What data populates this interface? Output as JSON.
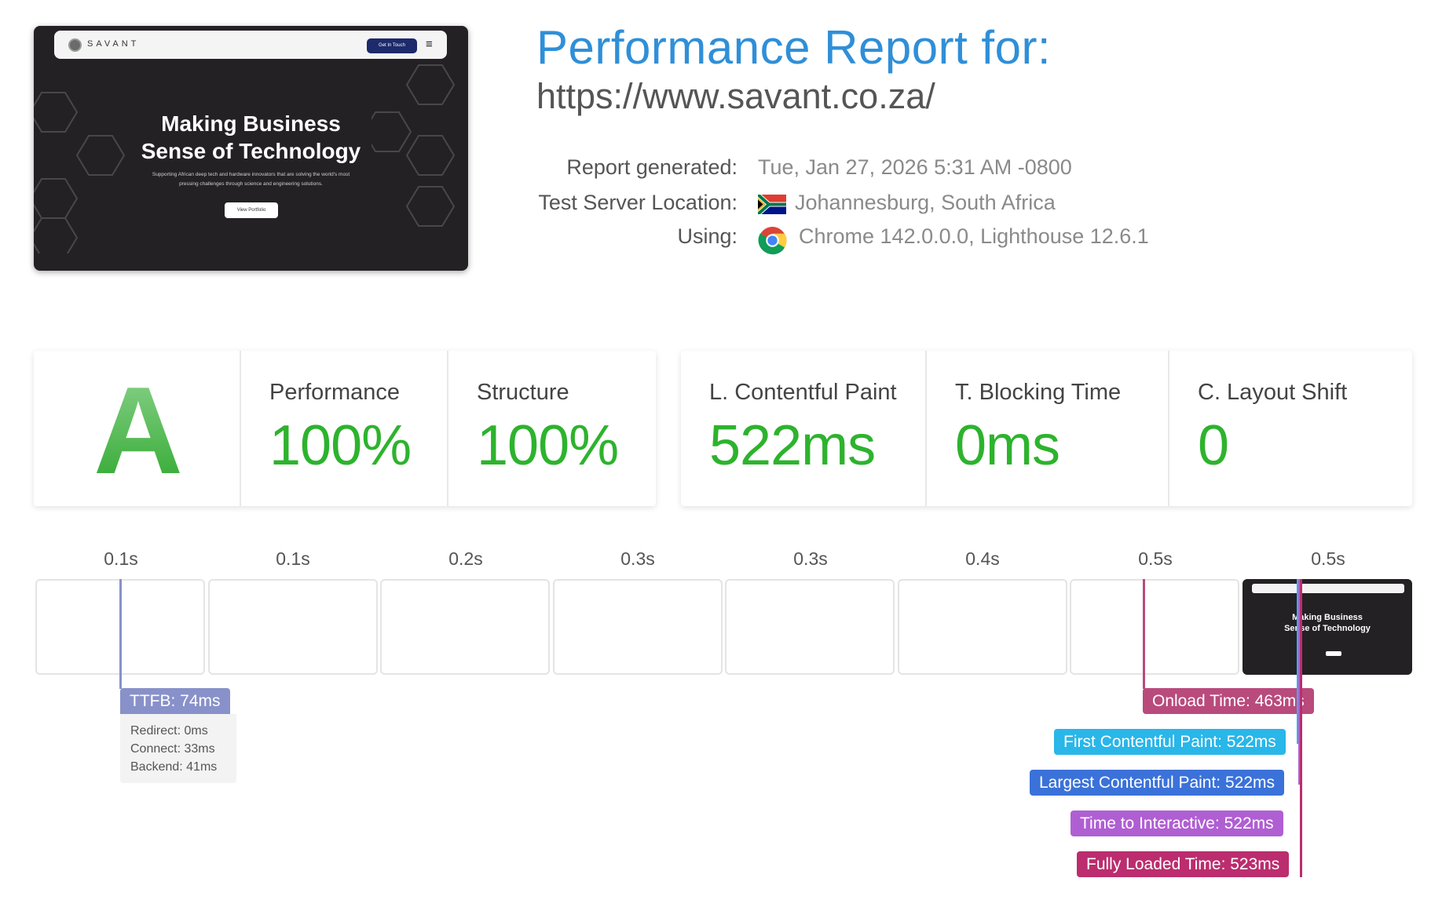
{
  "header": {
    "title": "Performance Report for:",
    "url": "https://www.savant.co.za/"
  },
  "meta": {
    "report_generated_label": "Report generated:",
    "report_generated_value": "Tue, Jan 27, 2026 5:31 AM -0800",
    "location_label": "Test Server Location:",
    "location_value": "Johannesburg, South Africa",
    "using_label": "Using:",
    "using_value": "Chrome 142.0.0.0, Lighthouse 12.6.1",
    "flag_icon": "south-africa-flag-icon",
    "browser_icon": "chrome-icon"
  },
  "thumbnail": {
    "brand": "SAVANT",
    "cta": "Get In Touch",
    "headline_line1": "Making Business",
    "headline_line2": "Sense of Technology",
    "subtitle": "Supporting African deep tech and hardware innovators that are solving the world's most pressing challenges through science and engineering solutions.",
    "button": "View Portfolio"
  },
  "scores": {
    "grade": "A",
    "performance_label": "Performance",
    "performance_value": "100%",
    "structure_label": "Structure",
    "structure_value": "100%",
    "lcp_label": "L. Contentful Paint",
    "lcp_value": "522ms",
    "tbt_label": "T. Blocking Time",
    "tbt_value": "0ms",
    "cls_label": "C. Layout Shift",
    "cls_value": "0",
    "good_color": "#2db32d"
  },
  "timeline": {
    "ticks": [
      "0.1s",
      "0.1s",
      "0.2s",
      "0.3s",
      "0.3s",
      "0.4s",
      "0.5s",
      "0.5s"
    ],
    "final_frame_line1": "Making Business",
    "final_frame_line2": "Sense of Technology",
    "ttfb_label": "TTFB: 74ms",
    "ttfb_redirect": "Redirect: 0ms",
    "ttfb_connect": "Connect: 33ms",
    "ttfb_backend": "Backend: 41ms",
    "onload_label": "Onload Time: 463ms",
    "fcp_label": "First Contentful Paint: 522ms",
    "lcp_label": "Largest Contentful Paint: 522ms",
    "tti_label": "Time to Interactive: 522ms",
    "flt_label": "Fully Loaded Time: 523ms",
    "colors": {
      "ttfb": "#8891c9",
      "onload": "#b94a7c",
      "fcp": "#29b6e8",
      "lcp": "#3b72d9",
      "tti": "#b05fd3",
      "flt": "#bb2d6e"
    }
  }
}
